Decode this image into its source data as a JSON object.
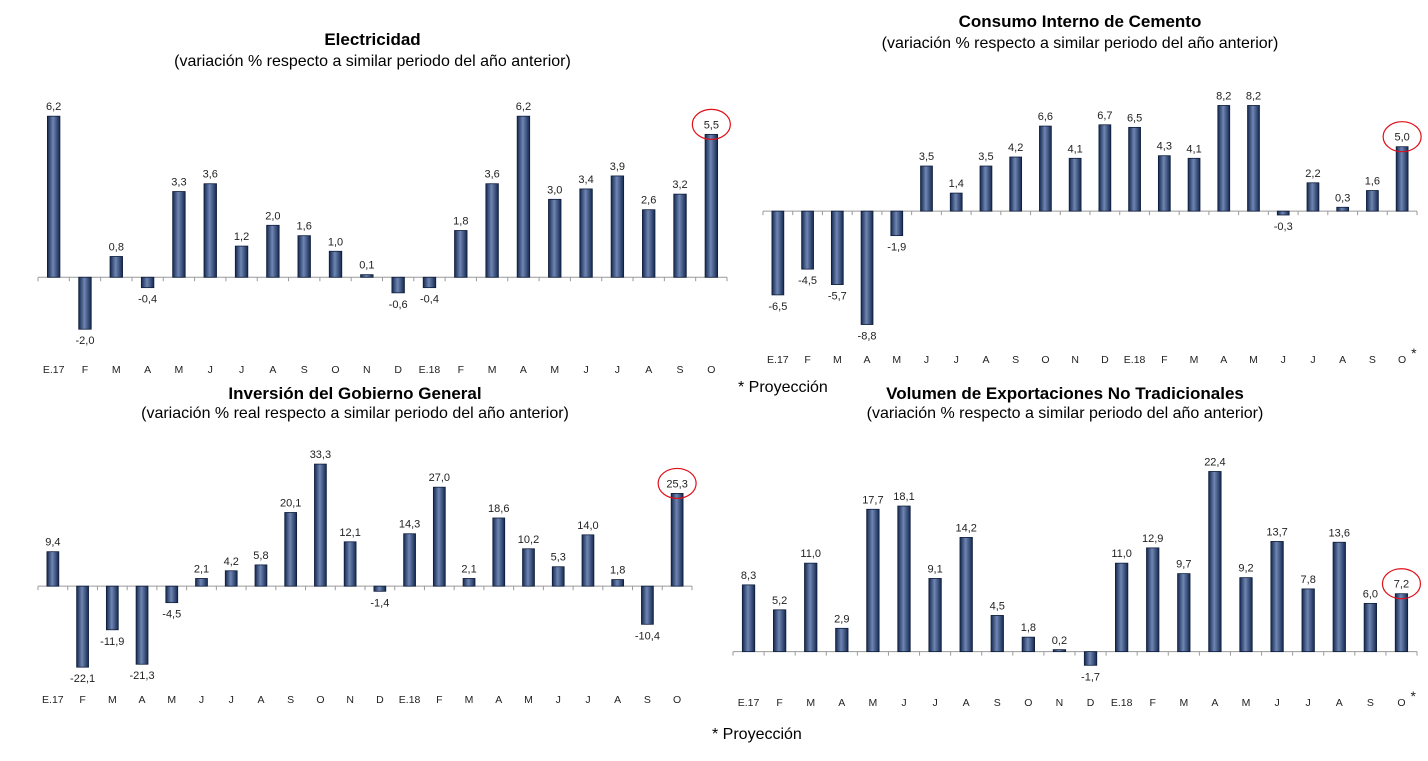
{
  "colors": {
    "bar_dark": "#14284f",
    "bar_light": "#6f86b3",
    "highlight": "#e0101a"
  },
  "chart_data": [
    {
      "type": "bar",
      "title": "Electricidad",
      "subtitle": "(variación % respecto a similar periodo del año anterior)",
      "categories": [
        "E.17",
        "F",
        "M",
        "A",
        "M",
        "J",
        "J",
        "A",
        "S",
        "O",
        "N",
        "D",
        "E.18",
        "F",
        "M",
        "A",
        "M",
        "J",
        "J",
        "A",
        "S",
        "O"
      ],
      "values": [
        6.2,
        -2.0,
        0.8,
        -0.4,
        3.3,
        3.6,
        1.2,
        2.0,
        1.6,
        1.0,
        0.1,
        -0.6,
        -0.4,
        1.8,
        3.6,
        6.2,
        3.0,
        3.4,
        3.9,
        2.6,
        3.2,
        5.5
      ],
      "labels": [
        "6,2",
        "-2,0",
        "0,8",
        "-0,4",
        "3,3",
        "3,6",
        "1,2",
        "2,0",
        "1,6",
        "1,0",
        "0,1",
        "-0,6",
        "-0,4",
        "1,8",
        "3,6",
        "6,2",
        "3,0",
        "3,4",
        "3,9",
        "2,6",
        "3,2",
        "5,5"
      ],
      "highlight_index": 21,
      "ylim": [
        -2.8,
        6.9
      ]
    },
    {
      "type": "bar",
      "title": "Consumo Interno de Cemento",
      "subtitle": "(variación % respecto a similar periodo del año anterior)",
      "categories": [
        "E.17",
        "F",
        "M",
        "A",
        "M",
        "J",
        "J",
        "A",
        "S",
        "O",
        "N",
        "D",
        "E.18",
        "F",
        "M",
        "A",
        "M",
        "J",
        "J",
        "A",
        "S",
        "O"
      ],
      "values": [
        -6.5,
        -4.5,
        -5.7,
        -8.8,
        -1.9,
        3.5,
        1.4,
        3.5,
        4.2,
        6.6,
        4.1,
        6.7,
        6.5,
        4.3,
        4.1,
        8.2,
        8.2,
        -0.3,
        2.2,
        0.3,
        1.6,
        5.0
      ],
      "labels": [
        "-6,5",
        "-4,5",
        "-5,7",
        "-8,8",
        "-1,9",
        "3,5",
        "1,4",
        "3,5",
        "4,2",
        "6,6",
        "4,1",
        "6,7",
        "6,5",
        "4,3",
        "4,1",
        "8,2",
        "8,2",
        "-0,3",
        "2,2",
        "0,3",
        "1,6",
        "5,0"
      ],
      "highlight_index": 21,
      "last_marker": "*",
      "ylim": [
        -10.0,
        9.4
      ],
      "note": "* Proyección"
    },
    {
      "type": "bar",
      "title": "Inversión del Gobierno General",
      "subtitle": "(variación % real respecto a similar periodo del año anterior)",
      "categories": [
        "E.17",
        "F",
        "M",
        "A",
        "M",
        "J",
        "J",
        "A",
        "S",
        "O",
        "N",
        "D",
        "E.18",
        "F",
        "M",
        "A",
        "M",
        "J",
        "J",
        "A",
        "S",
        "O"
      ],
      "values": [
        9.4,
        -22.1,
        -11.9,
        -21.3,
        -4.5,
        2.1,
        4.2,
        5.8,
        20.1,
        33.3,
        12.1,
        -1.4,
        14.3,
        27.0,
        2.1,
        18.6,
        10.2,
        5.3,
        14.0,
        1.8,
        -10.4,
        25.3
      ],
      "labels": [
        "9,4",
        "-22,1",
        "-11,9",
        "-21,3",
        "-4,5",
        "2,1",
        "4,2",
        "5,8",
        "20,1",
        "33,3",
        "12,1",
        "-1,4",
        "14,3",
        "27,0",
        "2,1",
        "18,6",
        "10,2",
        "5,3",
        "14,0",
        "1,8",
        "-10,4",
        "25,3"
      ],
      "highlight_index": 21,
      "ylim": [
        -25.6,
        36.6
      ]
    },
    {
      "type": "bar",
      "title": "Volumen de Exportaciones No Tradicionales",
      "subtitle": "(variación % respecto a similar periodo del año anterior)",
      "categories": [
        "E.17",
        "F",
        "M",
        "A",
        "M",
        "J",
        "J",
        "A",
        "S",
        "O",
        "N",
        "D",
        "E.18",
        "F",
        "M",
        "A",
        "M",
        "J",
        "J",
        "A",
        "S",
        "O"
      ],
      "values": [
        8.3,
        5.2,
        11.0,
        2.9,
        17.7,
        18.1,
        9.1,
        14.2,
        4.5,
        1.8,
        0.2,
        -1.7,
        11.0,
        12.9,
        9.7,
        22.4,
        9.2,
        13.7,
        7.8,
        13.6,
        6.0,
        7.2
      ],
      "labels": [
        "8,3",
        "5,2",
        "11,0",
        "2,9",
        "17,7",
        "18,1",
        "9,1",
        "14,2",
        "4,5",
        "1,8",
        "0,2",
        "-1,7",
        "11,0",
        "12,9",
        "9,7",
        "22,4",
        "9,2",
        "13,7",
        "7,8",
        "13,6",
        "6,0",
        "7,2"
      ],
      "highlight_index": 21,
      "last_marker": "*",
      "ylim": [
        -3.9,
        24.2
      ],
      "note": "* Proyección"
    }
  ]
}
